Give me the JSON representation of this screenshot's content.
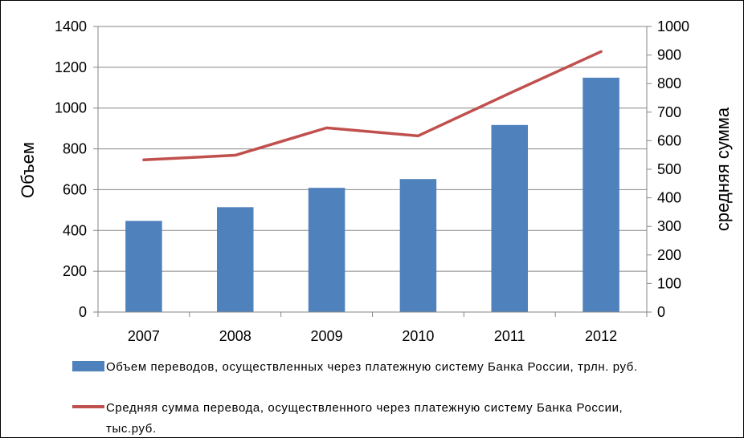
{
  "chart_data": {
    "type": "bar",
    "categories": [
      "2007",
      "2008",
      "2009",
      "2010",
      "2011",
      "2012"
    ],
    "series": [
      {
        "name": "Объем переводов, осуществленных через платежную систему Банка России, трлн. руб.",
        "type": "bar",
        "axis": "left",
        "values": [
          447,
          514,
          609,
          652,
          917,
          1149
        ],
        "color": "#4f81bd"
      },
      {
        "name_line1": "Средняя сумма перевода, осуществленного через платежную систему Банка России,",
        "name_line2": "тыс.руб.",
        "type": "line",
        "axis": "right",
        "values": [
          533,
          549,
          645,
          617,
          766,
          912
        ],
        "color": "#c0504d"
      }
    ],
    "ylabel_left": "Объем",
    "ylabel_right": "средняя сумма",
    "ylim_left": [
      0,
      1400
    ],
    "yticks_left": [
      "0",
      "200",
      "400",
      "600",
      "800",
      "1000",
      "1200",
      "1400"
    ],
    "ylim_right": [
      0,
      1000
    ],
    "yticks_right": [
      "0",
      "100",
      "200",
      "300",
      "400",
      "500",
      "600",
      "700",
      "800",
      "900",
      "1000"
    ],
    "grid": true,
    "legend_position": "bottom"
  }
}
